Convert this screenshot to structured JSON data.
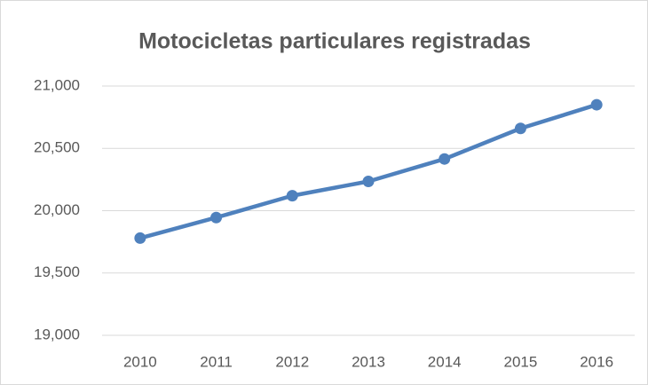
{
  "chart_data": {
    "type": "line",
    "title": "Motocicletas particulares registradas",
    "categories": [
      "2010",
      "2011",
      "2012",
      "2013",
      "2014",
      "2015",
      "2016"
    ],
    "series": [
      {
        "name": "Motocicletas",
        "color": "#4f81bd",
        "values": [
          19780,
          19945,
          20120,
          20235,
          20415,
          20660,
          20850
        ]
      }
    ],
    "ylim": [
      19000,
      21000
    ],
    "yticks": [
      {
        "value": 19000,
        "label": "19,000"
      },
      {
        "value": 19500,
        "label": "19,500"
      },
      {
        "value": 20000,
        "label": "20,000"
      },
      {
        "value": 20500,
        "label": "20,500"
      },
      {
        "value": 21000,
        "label": "21,000"
      }
    ],
    "grid": true
  }
}
